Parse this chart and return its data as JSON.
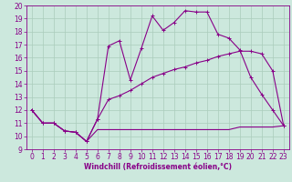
{
  "xlabel": "Windchill (Refroidissement éolien,°C)",
  "bg_color": "#cce8dd",
  "line_color": "#880088",
  "grid_color": "#aaccbb",
  "xlim": [
    -0.5,
    23.5
  ],
  "ylim": [
    9,
    20
  ],
  "xticks": [
    0,
    1,
    2,
    3,
    4,
    5,
    6,
    7,
    8,
    9,
    10,
    11,
    12,
    13,
    14,
    15,
    16,
    17,
    18,
    19,
    20,
    21,
    22,
    23
  ],
  "yticks": [
    9,
    10,
    11,
    12,
    13,
    14,
    15,
    16,
    17,
    18,
    19,
    20
  ],
  "line1_x": [
    0,
    1,
    2,
    3,
    4,
    5,
    6,
    7,
    8,
    9,
    10,
    11,
    12,
    13,
    14,
    15,
    16,
    17,
    18,
    19,
    20,
    21,
    22,
    23
  ],
  "line1_y": [
    12,
    11,
    11,
    10.4,
    10.3,
    9.6,
    10.5,
    10.5,
    10.5,
    10.5,
    10.5,
    10.5,
    10.5,
    10.5,
    10.5,
    10.5,
    10.5,
    10.5,
    10.5,
    10.7,
    10.7,
    10.7,
    10.7,
    10.8
  ],
  "line2_x": [
    0,
    1,
    2,
    3,
    4,
    5,
    6,
    7,
    8,
    9,
    10,
    11,
    12,
    13,
    14,
    15,
    16,
    17,
    18,
    19,
    20,
    21,
    22,
    23
  ],
  "line2_y": [
    12,
    11,
    11,
    10.4,
    10.3,
    9.6,
    11.3,
    12.8,
    13.1,
    13.5,
    14.0,
    14.5,
    14.8,
    15.1,
    15.3,
    15.6,
    15.8,
    16.1,
    16.3,
    16.5,
    16.5,
    16.3,
    15.0,
    10.8
  ],
  "line3_x": [
    0,
    1,
    2,
    3,
    4,
    5,
    6,
    7,
    8,
    9,
    10,
    11,
    12,
    13,
    14,
    15,
    16,
    17,
    18,
    19,
    20,
    21,
    22,
    23
  ],
  "line3_y": [
    12,
    11,
    11,
    10.4,
    10.3,
    9.6,
    11.3,
    16.9,
    17.3,
    14.3,
    16.7,
    19.2,
    18.1,
    18.7,
    19.6,
    19.5,
    19.5,
    17.8,
    17.5,
    16.6,
    14.5,
    13.2,
    12.0,
    10.8
  ],
  "tick_fontsize": 5.5,
  "xlabel_fontsize": 5.5,
  "linewidth": 0.8,
  "markersize": 3
}
